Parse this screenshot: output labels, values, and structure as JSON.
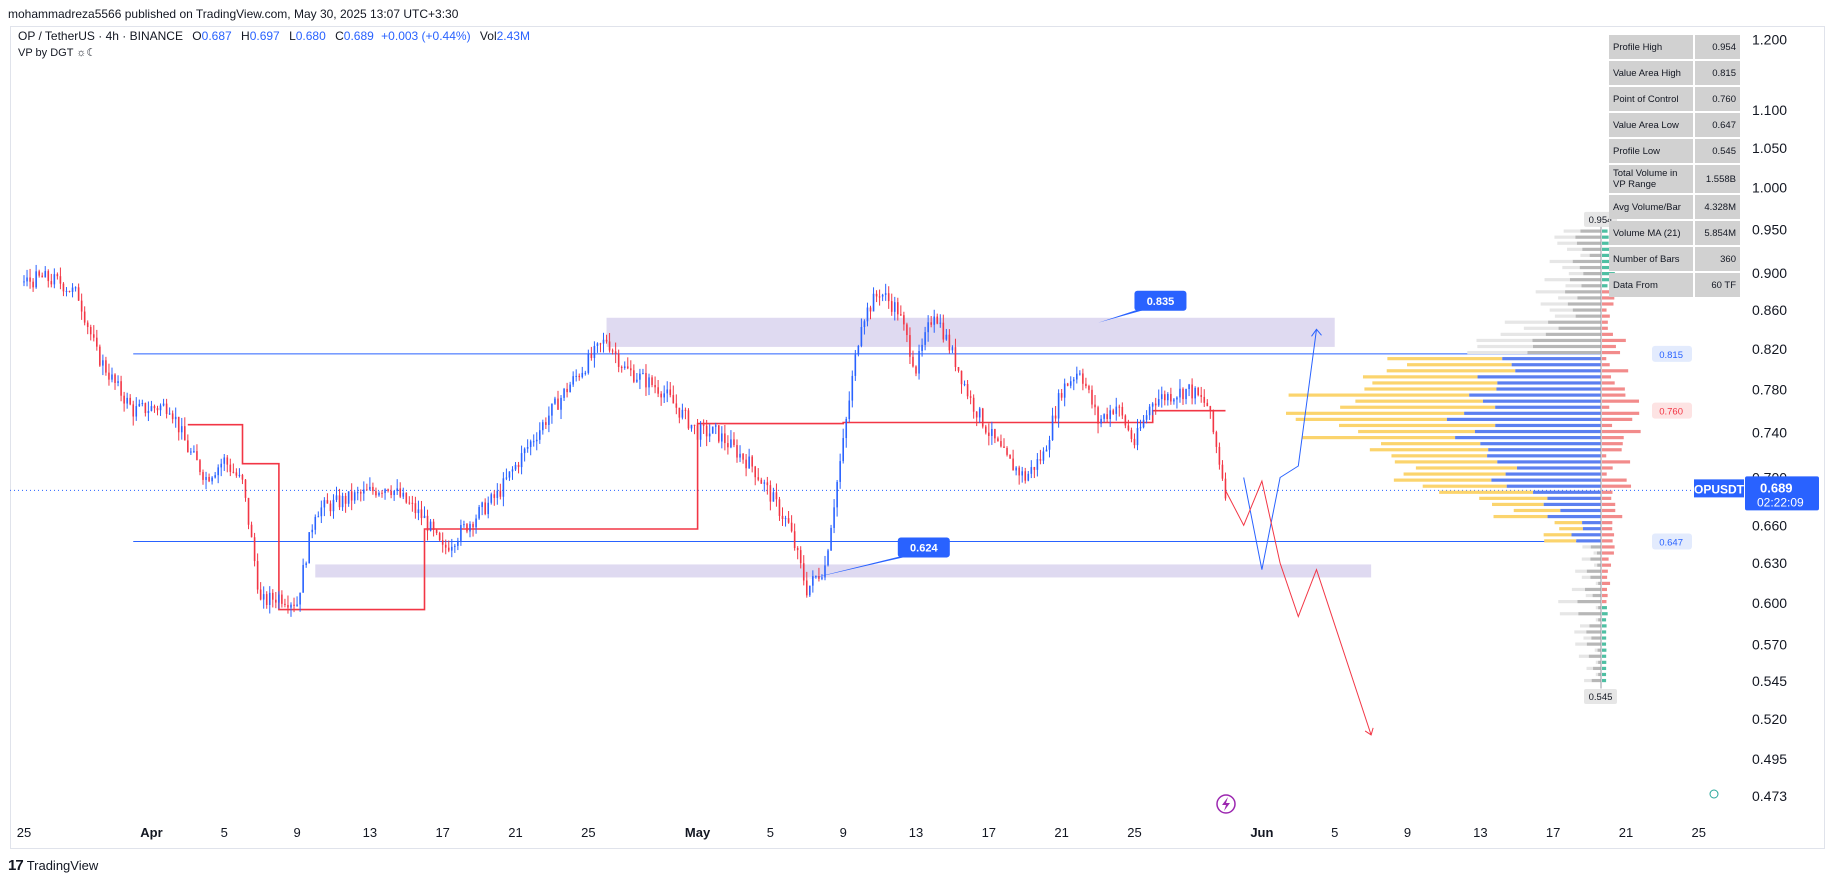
{
  "header": {
    "published": "mohammadreza5566 published on TradingView.com, May 30, 2025 13:07 UTC+3:30"
  },
  "legend": {
    "symbol": "OP / TetherUS · 4h · BINANCE",
    "o_label": "O",
    "o_value": "0.687",
    "h_label": "H",
    "h_value": "0.697",
    "l_label": "L",
    "l_value": "0.680",
    "c_label": "C",
    "c_value": "0.689",
    "change": "+0.003 (+0.44%)",
    "vol_label": "Vol",
    "vol_value": "2.43M",
    "indicator": "VP by DGT ☼☾"
  },
  "footer": {
    "logo": "17",
    "name": "TradingView"
  },
  "vp_table": [
    {
      "label": "Profile High",
      "value": "0.954"
    },
    {
      "label": "Value Area High",
      "value": "0.815"
    },
    {
      "label": "Point of Control",
      "value": "0.760"
    },
    {
      "label": "Value Area Low",
      "value": "0.647"
    },
    {
      "label": "Profile Low",
      "value": "0.545"
    },
    {
      "label": "Total Volume in VP Range",
      "value": "1.558B"
    },
    {
      "label": "Avg Volume/Bar",
      "value": "4.328M"
    },
    {
      "label": "Volume MA (21)",
      "value": "5.854M"
    },
    {
      "label": "Number of Bars",
      "value": "360"
    },
    {
      "label": "Data From",
      "value": "60 TF"
    }
  ],
  "chart_data": {
    "type": "candlestick",
    "symbol": "OPUSDT",
    "timeframe": "4h",
    "y_axis": {
      "scale": "log",
      "range": [
        0.465,
        1.205
      ],
      "ticks": [
        1.2,
        1.1,
        1.05,
        1.0,
        0.95,
        0.9,
        0.86,
        0.82,
        0.78,
        0.74,
        0.7,
        0.66,
        0.63,
        0.6,
        0.57,
        0.545,
        0.52,
        0.495,
        0.473
      ],
      "tick_labels": [
        "1.200",
        "1.100",
        "1.050",
        "1.000",
        "0.950",
        "0.900",
        "0.860",
        "0.820",
        "0.780",
        "0.740",
        "0.700",
        "0.660",
        "0.630",
        "0.600",
        "0.570",
        "0.545",
        "0.520",
        "0.495",
        "0.473"
      ]
    },
    "x_axis": {
      "range": [
        "2025-03-25",
        "2025-06-26"
      ],
      "ticks": [
        {
          "date": "2025-03-25",
          "label": "25"
        },
        {
          "date": "2025-04-01",
          "label": "Apr"
        },
        {
          "date": "2025-04-05",
          "label": "5"
        },
        {
          "date": "2025-04-09",
          "label": "9"
        },
        {
          "date": "2025-04-13",
          "label": "13"
        },
        {
          "date": "2025-04-17",
          "label": "17"
        },
        {
          "date": "2025-04-21",
          "label": "21"
        },
        {
          "date": "2025-04-25",
          "label": "25"
        },
        {
          "date": "2025-05-01",
          "label": "May"
        },
        {
          "date": "2025-05-05",
          "label": "5"
        },
        {
          "date": "2025-05-09",
          "label": "9"
        },
        {
          "date": "2025-05-13",
          "label": "13"
        },
        {
          "date": "2025-05-17",
          "label": "17"
        },
        {
          "date": "2025-05-21",
          "label": "21"
        },
        {
          "date": "2025-05-25",
          "label": "25"
        },
        {
          "date": "2025-06-01",
          "label": "Jun"
        },
        {
          "date": "2025-06-05",
          "label": "5"
        },
        {
          "date": "2025-06-09",
          "label": "9"
        },
        {
          "date": "2025-06-13",
          "label": "13"
        },
        {
          "date": "2025-06-17",
          "label": "17"
        },
        {
          "date": "2025-06-21",
          "label": "21"
        },
        {
          "date": "2025-06-25",
          "label": "25"
        }
      ]
    },
    "price_path": [
      [
        "2025-03-25",
        0.89
      ],
      [
        "2025-03-26",
        0.895
      ],
      [
        "2025-03-27",
        0.89
      ],
      [
        "2025-03-28",
        0.875
      ],
      [
        "2025-03-29",
        0.815
      ],
      [
        "2025-03-30",
        0.785
      ],
      [
        "2025-03-31",
        0.76
      ],
      [
        "2025-04-02",
        0.765
      ],
      [
        "2025-04-03",
        0.725
      ],
      [
        "2025-04-04",
        0.7
      ],
      [
        "2025-04-05",
        0.715
      ],
      [
        "2025-04-06",
        0.695
      ],
      [
        "2025-04-07",
        0.6
      ],
      [
        "2025-04-08",
        0.605
      ],
      [
        "2025-04-09",
        0.6
      ],
      [
        "2025-04-10",
        0.672
      ],
      [
        "2025-04-12",
        0.683
      ],
      [
        "2025-04-14",
        0.693
      ],
      [
        "2025-04-16",
        0.665
      ],
      [
        "2025-04-17",
        0.64
      ],
      [
        "2025-04-18",
        0.655
      ],
      [
        "2025-04-20",
        0.685
      ],
      [
        "2025-04-22",
        0.735
      ],
      [
        "2025-04-24",
        0.785
      ],
      [
        "2025-04-26",
        0.83
      ],
      [
        "2025-04-27",
        0.8
      ],
      [
        "2025-04-29",
        0.78
      ],
      [
        "2025-05-01",
        0.74
      ],
      [
        "2025-05-02",
        0.74
      ],
      [
        "2025-05-04",
        0.71
      ],
      [
        "2025-05-06",
        0.66
      ],
      [
        "2025-05-07",
        0.61
      ],
      [
        "2025-05-08",
        0.628
      ],
      [
        "2025-05-09",
        0.73
      ],
      [
        "2025-05-10",
        0.85
      ],
      [
        "2025-05-11",
        0.88
      ],
      [
        "2025-05-12",
        0.86
      ],
      [
        "2025-05-13",
        0.8
      ],
      [
        "2025-05-14",
        0.86
      ],
      [
        "2025-05-15",
        0.815
      ],
      [
        "2025-05-16",
        0.77
      ],
      [
        "2025-05-17",
        0.74
      ],
      [
        "2025-05-18",
        0.715
      ],
      [
        "2025-05-19",
        0.7
      ],
      [
        "2025-05-20",
        0.72
      ],
      [
        "2025-05-21",
        0.78
      ],
      [
        "2025-05-22",
        0.8
      ],
      [
        "2025-05-23",
        0.75
      ],
      [
        "2025-05-24",
        0.765
      ],
      [
        "2025-05-25",
        0.73
      ],
      [
        "2025-05-26",
        0.77
      ],
      [
        "2025-05-27",
        0.775
      ],
      [
        "2025-05-28",
        0.78
      ],
      [
        "2025-05-29",
        0.765
      ],
      [
        "2025-05-30",
        0.689
      ]
    ],
    "value_area_high": 0.815,
    "value_area_low": 0.647,
    "point_of_control": 0.76,
    "profile_high": 0.954,
    "profile_low": 0.545,
    "current_price": "0.689",
    "countdown": "02:22:09",
    "poc_steps": [
      [
        "2025-04-03",
        0.747
      ],
      [
        "2025-04-06",
        0.747
      ],
      [
        "2025-04-06",
        0.712
      ],
      [
        "2025-04-08",
        0.712
      ],
      [
        "2025-04-08",
        0.595
      ],
      [
        "2025-04-16",
        0.595
      ],
      [
        "2025-04-16",
        0.657
      ],
      [
        "2025-05-01",
        0.657
      ],
      [
        "2025-05-01",
        0.748
      ],
      [
        "2025-05-09",
        0.748
      ],
      [
        "2025-05-09",
        0.749
      ],
      [
        "2025-05-26",
        0.749
      ],
      [
        "2025-05-26",
        0.76
      ],
      [
        "2025-05-30",
        0.76
      ]
    ],
    "zones": [
      {
        "label": "0.835",
        "from": "2025-04-26",
        "to": "2025-06-05",
        "low": 0.822,
        "high": 0.852
      },
      {
        "label": "0.624",
        "from": "2025-04-10",
        "to": "2025-06-07",
        "low": 0.619,
        "high": 0.629
      }
    ],
    "projection_up": [
      [
        "2025-05-31",
        0.7
      ],
      [
        "2025-06-01",
        0.625
      ],
      [
        "2025-06-02",
        0.7
      ],
      [
        "2025-06-03",
        0.71
      ],
      [
        "2025-06-04",
        0.84
      ]
    ],
    "projection_down": [
      [
        "2025-05-30",
        0.689
      ],
      [
        "2025-05-31",
        0.66
      ],
      [
        "2025-06-01",
        0.697
      ],
      [
        "2025-06-02",
        0.63
      ],
      [
        "2025-06-03",
        0.59
      ],
      [
        "2025-06-04",
        0.625
      ],
      [
        "2025-06-07",
        0.51
      ]
    ],
    "profile_labels": [
      {
        "text": "0.815",
        "price": 0.815
      },
      {
        "text": "0.760",
        "price": 0.76
      },
      {
        "text": "0.647",
        "price": 0.647
      }
    ],
    "extreme_labels": [
      {
        "text": "0.954",
        "price": 0.954
      },
      {
        "text": "0.545",
        "price": 0.545
      }
    ],
    "colors": {
      "up": "#2962ff",
      "down": "#f23645",
      "zone": "#d9d4ee",
      "poc": "#f23645",
      "va_line": "#2962ff",
      "vp_yellow": "#fbd46d",
      "vp_blue": "#5b7ff0",
      "vp_gray": "#b7b7b7",
      "vp_red": "#f28b8b",
      "vp_teal": "#4fbfa3"
    }
  }
}
